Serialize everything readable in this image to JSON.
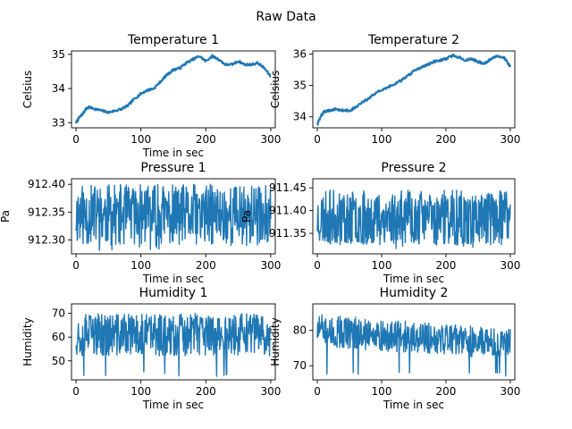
{
  "suptitle": "Raw Data",
  "colors": {
    "series": "#1f77b4"
  },
  "chart_data": [
    {
      "type": "line",
      "title": "Temperature 1",
      "xlabel": "Time in sec",
      "ylabel": "Celsius",
      "xlim": [
        -7,
        307
      ],
      "ylim": [
        32.85,
        35.1
      ],
      "xticks": [
        0,
        100,
        200,
        300
      ],
      "yticks": [
        33,
        34,
        35
      ],
      "style": "smooth",
      "series": [
        {
          "x": [
            0,
            5,
            10,
            15,
            20,
            30,
            40,
            50,
            60,
            70,
            80,
            90,
            100,
            110,
            120,
            130,
            140,
            150,
            160,
            170,
            180,
            190,
            200,
            210,
            220,
            230,
            240,
            250,
            260,
            270,
            280,
            290,
            300
          ],
          "y": [
            33.0,
            33.15,
            33.25,
            33.4,
            33.45,
            33.4,
            33.35,
            33.3,
            33.35,
            33.4,
            33.5,
            33.7,
            33.85,
            33.95,
            34.0,
            34.2,
            34.4,
            34.55,
            34.6,
            34.75,
            34.85,
            34.95,
            34.8,
            34.95,
            34.85,
            34.7,
            34.7,
            34.8,
            34.7,
            34.7,
            34.75,
            34.6,
            34.35
          ]
        }
      ]
    },
    {
      "type": "line",
      "title": "Temperature 2",
      "xlabel": "",
      "ylabel": "Celsius",
      "xlim": [
        -7,
        307
      ],
      "ylim": [
        33.65,
        36.1
      ],
      "xticks": [
        0,
        100,
        200,
        300
      ],
      "yticks": [
        34,
        35,
        36
      ],
      "style": "smooth",
      "series": [
        {
          "x": [
            0,
            5,
            10,
            15,
            20,
            30,
            40,
            50,
            60,
            70,
            80,
            90,
            100,
            110,
            120,
            130,
            140,
            150,
            160,
            170,
            180,
            190,
            200,
            210,
            220,
            230,
            240,
            250,
            260,
            270,
            280,
            290,
            295,
            300
          ],
          "y": [
            33.75,
            34.0,
            34.15,
            34.2,
            34.2,
            34.25,
            34.2,
            34.2,
            34.3,
            34.45,
            34.6,
            34.75,
            34.85,
            34.95,
            35.05,
            35.15,
            35.3,
            35.45,
            35.55,
            35.65,
            35.75,
            35.8,
            35.85,
            35.95,
            35.9,
            35.8,
            35.85,
            35.75,
            35.7,
            35.85,
            35.95,
            35.9,
            35.75,
            35.6
          ]
        }
      ]
    },
    {
      "type": "line",
      "title": "Pressure 1",
      "xlabel": "Time in sec",
      "ylabel": "Pa",
      "xlim": [
        -7,
        307
      ],
      "ylim": [
        912.275,
        912.41
      ],
      "xticks": [
        0,
        100,
        200,
        300
      ],
      "yticks": [
        912.3,
        912.35,
        912.4
      ],
      "yformat": 2,
      "style": "noise",
      "noise": {
        "base": 912.345,
        "amp": 0.055,
        "minv": 912.28,
        "maxv": 912.405,
        "n": 500,
        "seed": 11
      }
    },
    {
      "type": "line",
      "title": "Pressure 2",
      "xlabel": "Time in sec",
      "ylabel": "Pa",
      "xlim": [
        -7,
        307
      ],
      "ylim": [
        911.305,
        911.47
      ],
      "xticks": [
        0,
        100,
        200,
        300
      ],
      "yticks": [
        911.35,
        911.4,
        911.45
      ],
      "yformat": 2,
      "style": "noise",
      "noise": {
        "base": 911.385,
        "amp": 0.06,
        "minv": 911.315,
        "maxv": 911.46,
        "n": 500,
        "seed": 23
      }
    },
    {
      "type": "line",
      "title": "Humidity 1",
      "xlabel": "Time in sec",
      "ylabel": "Humidity",
      "xlim": [
        -7,
        307
      ],
      "ylim": [
        42,
        74
      ],
      "xticks": [
        0,
        100,
        200,
        300
      ],
      "yticks": [
        50,
        60,
        70
      ],
      "style": "noise",
      "noise": {
        "base": 61,
        "amp": 9,
        "minv": 43,
        "maxv": 73,
        "n": 500,
        "seed": 37
      }
    },
    {
      "type": "line",
      "title": "Humidity 2",
      "xlabel": "Time in sec",
      "ylabel": "Humidity",
      "xlim": [
        -7,
        307
      ],
      "ylim": [
        66,
        87.5
      ],
      "xticks": [
        0,
        100,
        200,
        300
      ],
      "yticks": [
        70,
        80
      ],
      "style": "noise",
      "noise": {
        "base": 80,
        "amp": 4.5,
        "minv": 67,
        "maxv": 86.5,
        "n": 500,
        "seed": 51,
        "trend": -4
      }
    }
  ]
}
